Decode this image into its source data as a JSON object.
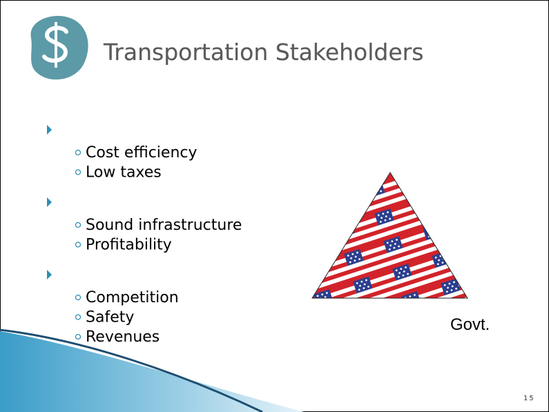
{
  "header": {
    "title": "Transportation Stakeholders"
  },
  "groups": [
    {
      "items": [
        "Cost efficiency",
        "Low taxes"
      ]
    },
    {
      "items": [
        "Sound infrastructure",
        "Profitability"
      ]
    },
    {
      "items": [
        "Competition",
        "Safety",
        "Revenues"
      ]
    }
  ],
  "figure": {
    "label": "Govt."
  },
  "page_number": "15"
}
